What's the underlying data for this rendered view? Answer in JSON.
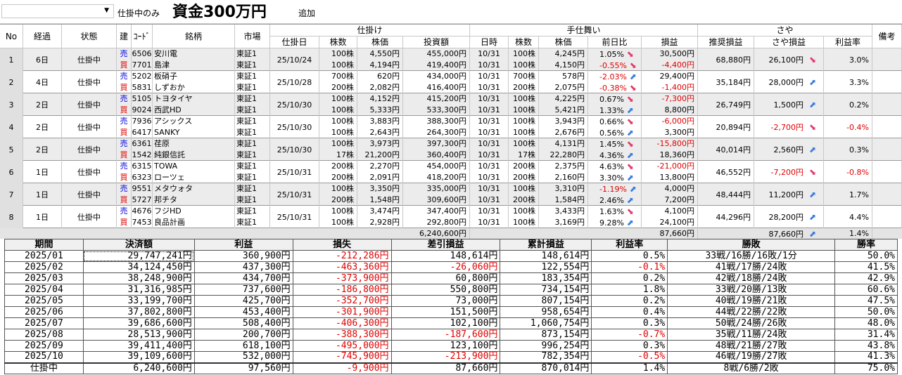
{
  "toolbar": {
    "filter_label": "仕掛中のみ",
    "add_label": "追加",
    "dropdown_arrow": "▼"
  },
  "title": "資金300万円",
  "headers": {
    "no": "No",
    "elapsed": "経過",
    "status": "状態",
    "side": "建",
    "code": "ｺｰﾄﾞ",
    "name": "銘柄",
    "market": "市場",
    "position_group": "仕掛け",
    "position_date": "仕掛日",
    "shares": "株数",
    "price": "株価",
    "investment": "投資額",
    "close_group": "手仕舞い",
    "close_date": "日時",
    "close_shares": "株数",
    "close_price": "株価",
    "change": "前日比",
    "pl": "損益",
    "spread_group": "さや",
    "recommended_pl": "推奨損益",
    "spread_pl": "さや損益",
    "profit_rate": "利益率",
    "remarks": "備考"
  },
  "rows": [
    {
      "no": "1",
      "elapsed": "6日",
      "status": "仕掛中",
      "date": "25/10/24",
      "recommended": "68,880円",
      "spread": "26,100円",
      "spread_neg": false,
      "trend": "down",
      "rate": "3.0%",
      "rate_neg": false,
      "legs": [
        {
          "side": "売",
          "code": "6506",
          "name": "安川電",
          "market": "東証1",
          "shares": "100株",
          "price": "4,550円",
          "invest": "455,000円",
          "cdate": "10/31",
          "cshares": "100株",
          "cprice": "4,245円",
          "change": "1.05%",
          "change_neg": false,
          "ctrend": "down",
          "pl": "30,500円",
          "pl_neg": false
        },
        {
          "side": "買",
          "code": "7701",
          "name": "島津",
          "market": "東証1",
          "shares": "100株",
          "price": "4,194円",
          "invest": "419,400円",
          "cdate": "10/31",
          "cshares": "100株",
          "cprice": "4,150円",
          "change": "-0.55%",
          "change_neg": true,
          "ctrend": "down",
          "pl": "-4,400円",
          "pl_neg": true
        }
      ]
    },
    {
      "no": "2",
      "elapsed": "4日",
      "status": "仕掛中",
      "date": "25/10/28",
      "recommended": "35,184円",
      "spread": "28,000円",
      "spread_neg": false,
      "trend": "up",
      "rate": "3.3%",
      "rate_neg": false,
      "legs": [
        {
          "side": "売",
          "code": "5202",
          "name": "板硝子",
          "market": "東証1",
          "shares": "700株",
          "price": "620円",
          "invest": "434,000円",
          "cdate": "10/31",
          "cshares": "700株",
          "cprice": "578円",
          "change": "-2.03%",
          "change_neg": true,
          "ctrend": "up",
          "pl": "29,400円",
          "pl_neg": false
        },
        {
          "side": "買",
          "code": "5831",
          "name": "しずおか",
          "market": "東証1",
          "shares": "200株",
          "price": "2,082円",
          "invest": "416,400円",
          "cdate": "10/31",
          "cshares": "200株",
          "cprice": "2,075円",
          "change": "-0.38%",
          "change_neg": true,
          "ctrend": "down",
          "pl": "-1,400円",
          "pl_neg": true
        }
      ]
    },
    {
      "no": "3",
      "elapsed": "2日",
      "status": "仕掛中",
      "date": "25/10/30",
      "recommended": "26,749円",
      "spread": "1,500円",
      "spread_neg": false,
      "trend": "up",
      "rate": "0.2%",
      "rate_neg": false,
      "legs": [
        {
          "side": "売",
          "code": "5105",
          "name": "トヨタイヤ",
          "market": "東証1",
          "shares": "100株",
          "price": "4,152円",
          "invest": "415,200円",
          "cdate": "10/31",
          "cshares": "100株",
          "cprice": "4,225円",
          "change": "0.67%",
          "change_neg": false,
          "ctrend": "down",
          "pl": "-7,300円",
          "pl_neg": true
        },
        {
          "side": "買",
          "code": "9024",
          "name": "西武HD",
          "market": "東証1",
          "shares": "100株",
          "price": "5,333円",
          "invest": "533,300円",
          "cdate": "10/31",
          "cshares": "100株",
          "cprice": "5,421円",
          "change": "1.33%",
          "change_neg": false,
          "ctrend": "up",
          "pl": "8,800円",
          "pl_neg": false
        }
      ]
    },
    {
      "no": "4",
      "elapsed": "2日",
      "status": "仕掛中",
      "date": "25/10/30",
      "recommended": "20,894円",
      "spread": "-2,700円",
      "spread_neg": true,
      "trend": "down",
      "rate": "-0.4%",
      "rate_neg": true,
      "legs": [
        {
          "side": "売",
          "code": "7936",
          "name": "アシックス",
          "market": "東証1",
          "shares": "100株",
          "price": "3,883円",
          "invest": "388,300円",
          "cdate": "10/31",
          "cshares": "100株",
          "cprice": "3,943円",
          "change": "0.66%",
          "change_neg": false,
          "ctrend": "down",
          "pl": "-6,000円",
          "pl_neg": true
        },
        {
          "side": "買",
          "code": "6417",
          "name": "SANKY",
          "market": "東証1",
          "shares": "100株",
          "price": "2,643円",
          "invest": "264,300円",
          "cdate": "10/31",
          "cshares": "100株",
          "cprice": "2,676円",
          "change": "0.56%",
          "change_neg": false,
          "ctrend": "up",
          "pl": "3,300円",
          "pl_neg": false
        }
      ]
    },
    {
      "no": "5",
      "elapsed": "2日",
      "status": "仕掛中",
      "date": "25/10/30",
      "recommended": "40,014円",
      "spread": "2,560円",
      "spread_neg": false,
      "trend": "up",
      "rate": "0.3%",
      "rate_neg": false,
      "legs": [
        {
          "side": "売",
          "code": "6361",
          "name": "荏原",
          "market": "東証1",
          "shares": "100株",
          "price": "3,973円",
          "invest": "397,300円",
          "cdate": "10/31",
          "cshares": "100株",
          "cprice": "4,131円",
          "change": "1.45%",
          "change_neg": false,
          "ctrend": "down",
          "pl": "-15,800円",
          "pl_neg": true
        },
        {
          "side": "買",
          "code": "1542",
          "name": "純銀信託",
          "market": "東証1",
          "shares": "17株",
          "price": "21,200円",
          "invest": "360,400円",
          "cdate": "10/31",
          "cshares": "17株",
          "cprice": "22,280円",
          "change": "4.36%",
          "change_neg": false,
          "ctrend": "up",
          "pl": "18,360円",
          "pl_neg": false
        }
      ]
    },
    {
      "no": "6",
      "elapsed": "1日",
      "status": "仕掛中",
      "date": "25/10/31",
      "recommended": "46,552円",
      "spread": "-7,200円",
      "spread_neg": true,
      "trend": "down",
      "rate": "-0.8%",
      "rate_neg": true,
      "legs": [
        {
          "side": "売",
          "code": "6315",
          "name": "TOWA",
          "market": "東証1",
          "shares": "200株",
          "price": "2,270円",
          "invest": "454,000円",
          "cdate": "10/31",
          "cshares": "200株",
          "cprice": "2,375円",
          "change": "4.63%",
          "change_neg": false,
          "ctrend": "down",
          "pl": "-21,000円",
          "pl_neg": true
        },
        {
          "side": "買",
          "code": "6323",
          "name": "ローツェ",
          "market": "東証1",
          "shares": "200株",
          "price": "2,091円",
          "invest": "418,200円",
          "cdate": "10/31",
          "cshares": "200株",
          "cprice": "2,160円",
          "change": "3.30%",
          "change_neg": false,
          "ctrend": "up",
          "pl": "13,800円",
          "pl_neg": false
        }
      ]
    },
    {
      "no": "7",
      "elapsed": "1日",
      "status": "仕掛中",
      "date": "25/10/31",
      "recommended": "48,444円",
      "spread": "11,200円",
      "spread_neg": false,
      "trend": "up",
      "rate": "1.7%",
      "rate_neg": false,
      "legs": [
        {
          "side": "売",
          "code": "9551",
          "name": "メタウォタ",
          "market": "東証1",
          "shares": "100株",
          "price": "3,350円",
          "invest": "335,000円",
          "cdate": "10/31",
          "cshares": "100株",
          "cprice": "3,310円",
          "change": "-1.19%",
          "change_neg": true,
          "ctrend": "up",
          "pl": "4,000円",
          "pl_neg": false
        },
        {
          "side": "買",
          "code": "5727",
          "name": "邦チタ",
          "market": "東証1",
          "shares": "200株",
          "price": "1,548円",
          "invest": "309,600円",
          "cdate": "10/31",
          "cshares": "200株",
          "cprice": "1,584円",
          "change": "2.46%",
          "change_neg": false,
          "ctrend": "up",
          "pl": "7,200円",
          "pl_neg": false
        }
      ]
    },
    {
      "no": "8",
      "elapsed": "1日",
      "status": "仕掛中",
      "date": "25/10/31",
      "recommended": "44,296円",
      "spread": "28,200円",
      "spread_neg": false,
      "trend": "up",
      "rate": "4.4%",
      "rate_neg": false,
      "legs": [
        {
          "side": "売",
          "code": "4676",
          "name": "フジHD",
          "market": "東証1",
          "shares": "100株",
          "price": "3,474円",
          "invest": "347,400円",
          "cdate": "10/31",
          "cshares": "100株",
          "cprice": "3,433円",
          "change": "1.63%",
          "change_neg": false,
          "ctrend": "down",
          "pl": "4,100円",
          "pl_neg": false
        },
        {
          "side": "買",
          "code": "7453",
          "name": "良品計画",
          "market": "東証1",
          "shares": "100株",
          "price": "2,928円",
          "invest": "292,800円",
          "cdate": "10/31",
          "cshares": "100株",
          "cprice": "3,169円",
          "change": "9.28%",
          "change_neg": false,
          "ctrend": "up",
          "pl": "24,100円",
          "pl_neg": false
        }
      ]
    }
  ],
  "totals": {
    "invest": "6,240,600円",
    "pl": "87,660円",
    "spread": "87,660円",
    "trend": "up",
    "rate": "1.4%"
  },
  "summary": {
    "headers": [
      "期間",
      "決済額",
      "利益",
      "損失",
      "差引損益",
      "累計損益",
      "利益率",
      "勝敗",
      "勝率"
    ],
    "rows": [
      [
        "2025/01",
        "29,747,241円",
        "360,900円",
        "-212,286円",
        "148,614円",
        "148,614円",
        "0.5%",
        "33戦/16勝/16敗/1分",
        "50.0%"
      ],
      [
        "2025/02",
        "34,124,450円",
        "437,300円",
        "-463,360円",
        "-26,060円",
        "122,554円",
        "-0.1%",
        "41戦/17勝/24敗",
        "41.5%"
      ],
      [
        "2025/03",
        "38,248,900円",
        "434,700円",
        "-373,900円",
        "60,800円",
        "183,354円",
        "0.2%",
        "42戦/18勝/24敗",
        "42.9%"
      ],
      [
        "2025/04",
        "31,316,985円",
        "737,600円",
        "-186,800円",
        "550,800円",
        "734,154円",
        "1.8%",
        "33戦/20勝/13敗",
        "60.6%"
      ],
      [
        "2025/05",
        "33,199,700円",
        "425,700円",
        "-352,700円",
        "73,000円",
        "807,154円",
        "0.2%",
        "40戦/19勝/21敗",
        "47.5%"
      ],
      [
        "2025/06",
        "37,802,800円",
        "453,400円",
        "-301,900円",
        "151,500円",
        "958,654円",
        "0.4%",
        "44戦/22勝/22敗",
        "50.0%"
      ],
      [
        "2025/07",
        "39,686,600円",
        "508,400円",
        "-406,300円",
        "102,100円",
        "1,060,754円",
        "0.3%",
        "50戦/24勝/26敗",
        "48.0%"
      ],
      [
        "2025/08",
        "28,513,900円",
        "200,700円",
        "-388,300円",
        "-187,600円",
        "873,154円",
        "-0.7%",
        "35戦/11勝/24敗",
        "31.4%"
      ],
      [
        "2025/09",
        "39,411,400円",
        "618,100円",
        "-495,000円",
        "123,100円",
        "996,254円",
        "0.3%",
        "48戦/21勝/27敗",
        "43.8%"
      ],
      [
        "2025/10",
        "39,109,600円",
        "532,000円",
        "-745,900円",
        "-213,900円",
        "782,354円",
        "-0.5%",
        "46戦/19勝/27敗",
        "41.3%"
      ],
      [
        "仕掛中",
        "6,240,600円",
        "97,560円",
        "-9,900円",
        "87,660円",
        "870,014円",
        "1.4%",
        "8戦/6勝/2敗",
        "75.0%"
      ]
    ]
  }
}
